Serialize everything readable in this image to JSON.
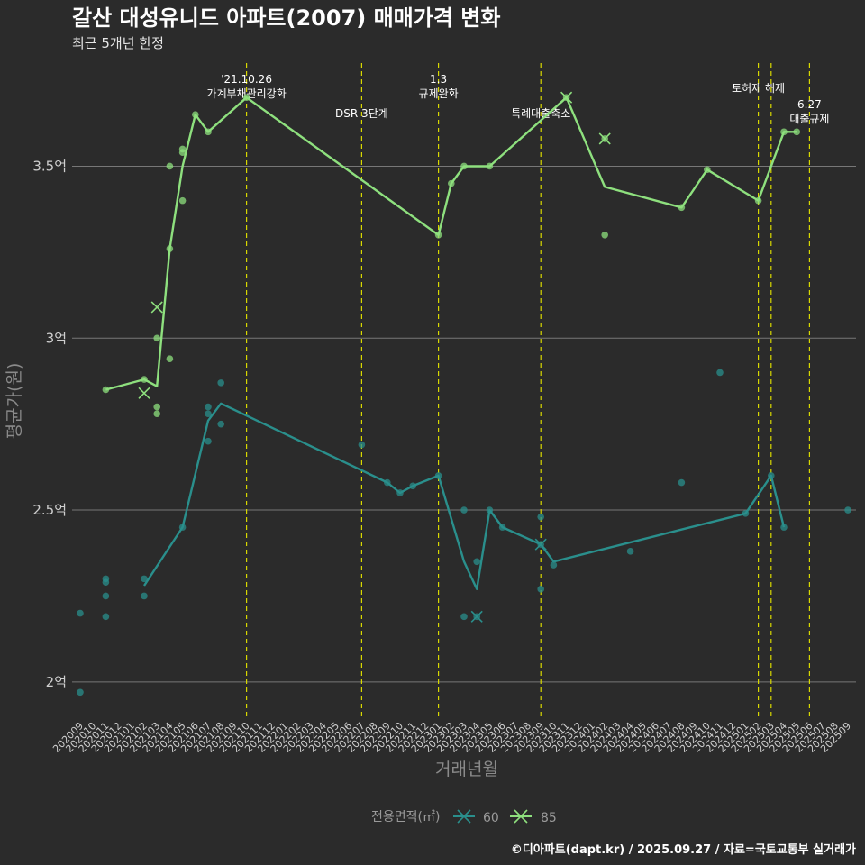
{
  "chart_data": {
    "type": "line",
    "title": "갈산 대성유니드 아파트(2007) 매매가격 변화",
    "subtitle": "최근 5개년 한정",
    "xlabel": "거래년월",
    "ylabel": "평균가(원)",
    "caption": "©디아파트(dapt.kr) / 2025.09.27 / 자료=국토교통부 실거래가",
    "categories": [
      "202009",
      "202010",
      "202011",
      "202012",
      "202101",
      "202102",
      "202103",
      "202104",
      "202105",
      "202106",
      "202107",
      "202108",
      "202109",
      "202110",
      "202111",
      "202112",
      "202201",
      "202202",
      "202203",
      "202204",
      "202205",
      "202206",
      "202207",
      "202208",
      "202209",
      "202210",
      "202211",
      "202212",
      "202301",
      "202302",
      "202303",
      "202304",
      "202305",
      "202306",
      "202307",
      "202308",
      "202309",
      "202310",
      "202311",
      "202312",
      "202401",
      "202402",
      "202403",
      "202404",
      "202405",
      "202406",
      "202407",
      "202408",
      "202409",
      "202410",
      "202411",
      "202412",
      "202501",
      "202502",
      "202503",
      "202504",
      "202505",
      "202506",
      "202507",
      "202508",
      "202509"
    ],
    "ylim": [
      1.9,
      3.8
    ],
    "yticks": [
      {
        "value": 2.0,
        "label": "2억"
      },
      {
        "value": 2.5,
        "label": "2.5억"
      },
      {
        "value": 3.0,
        "label": "3억"
      },
      {
        "value": 3.5,
        "label": "3.5억"
      }
    ],
    "legend": {
      "title": "전용면적(㎡)",
      "position": "bottom"
    },
    "series": [
      {
        "name": "60",
        "color": "#2a8f8c",
        "line": [
          [
            "202102",
            2.28
          ],
          [
            "202105",
            2.45
          ],
          [
            "202107",
            2.76
          ],
          [
            "202108",
            2.81
          ],
          [
            "202209",
            2.58
          ],
          [
            "202210",
            2.55
          ],
          [
            "202211",
            2.57
          ],
          [
            "202301",
            2.6
          ],
          [
            "202303",
            2.35
          ],
          [
            "202304",
            2.27
          ],
          [
            "202305",
            2.5
          ],
          [
            "202306",
            2.45
          ],
          [
            "202309",
            2.4
          ],
          [
            "202310",
            2.35
          ],
          [
            "202501",
            2.49
          ],
          [
            "202503",
            2.6
          ],
          [
            "202504",
            2.45
          ]
        ],
        "points": [
          [
            "202009",
            2.2
          ],
          [
            "202009",
            1.97
          ],
          [
            "202011",
            2.3
          ],
          [
            "202011",
            2.29
          ],
          [
            "202011",
            2.25
          ],
          [
            "202011",
            2.19
          ],
          [
            "202102",
            2.3
          ],
          [
            "202102",
            2.25
          ],
          [
            "202105",
            2.45
          ],
          [
            "202107",
            2.8
          ],
          [
            "202107",
            2.78
          ],
          [
            "202107",
            2.7
          ],
          [
            "202108",
            2.87
          ],
          [
            "202108",
            2.75
          ],
          [
            "202207",
            2.69
          ],
          [
            "202209",
            2.58
          ],
          [
            "202210",
            2.55
          ],
          [
            "202211",
            2.57
          ],
          [
            "202301",
            2.6
          ],
          [
            "202303",
            2.5
          ],
          [
            "202303",
            2.19
          ],
          [
            "202304",
            2.35
          ],
          [
            "202304",
            2.19
          ],
          [
            "202305",
            2.5
          ],
          [
            "202306",
            2.45
          ],
          [
            "202309",
            2.48
          ],
          [
            "202309",
            2.4
          ],
          [
            "202309",
            2.27
          ],
          [
            "202310",
            2.34
          ],
          [
            "202404",
            2.38
          ],
          [
            "202408",
            2.58
          ],
          [
            "202411",
            2.9
          ],
          [
            "202501",
            2.49
          ],
          [
            "202503",
            2.6
          ],
          [
            "202504",
            2.45
          ],
          [
            "202509",
            2.5
          ]
        ],
        "crosses": [
          [
            "202304",
            2.19
          ],
          [
            "202309",
            2.4
          ]
        ]
      },
      {
        "name": "85",
        "color": "#8ee07e",
        "line": [
          [
            "202011",
            2.85
          ],
          [
            "202102",
            2.88
          ],
          [
            "202103",
            2.86
          ],
          [
            "202104",
            3.26
          ],
          [
            "202105",
            3.5
          ],
          [
            "202106",
            3.65
          ],
          [
            "202107",
            3.6
          ],
          [
            "202110",
            3.7
          ],
          [
            "202301",
            3.3
          ],
          [
            "202302",
            3.45
          ],
          [
            "202303",
            3.5
          ],
          [
            "202305",
            3.5
          ],
          [
            "202311",
            3.7
          ],
          [
            "202402",
            3.44
          ],
          [
            "202408",
            3.38
          ],
          [
            "202410",
            3.49
          ],
          [
            "202502",
            3.4
          ],
          [
            "202504",
            3.6
          ],
          [
            "202505",
            3.6
          ]
        ],
        "points": [
          [
            "202011",
            2.85
          ],
          [
            "202102",
            2.88
          ],
          [
            "202103",
            3.0
          ],
          [
            "202103",
            2.8
          ],
          [
            "202103",
            2.78
          ],
          [
            "202104",
            3.5
          ],
          [
            "202104",
            3.26
          ],
          [
            "202104",
            2.94
          ],
          [
            "202105",
            3.55
          ],
          [
            "202105",
            3.54
          ],
          [
            "202105",
            3.4
          ],
          [
            "202106",
            3.65
          ],
          [
            "202107",
            3.6
          ],
          [
            "202110",
            3.7
          ],
          [
            "202301",
            3.3
          ],
          [
            "202302",
            3.45
          ],
          [
            "202303",
            3.5
          ],
          [
            "202305",
            3.5
          ],
          [
            "202311",
            3.7
          ],
          [
            "202402",
            3.58
          ],
          [
            "202402",
            3.3
          ],
          [
            "202408",
            3.38
          ],
          [
            "202410",
            3.49
          ],
          [
            "202502",
            3.4
          ],
          [
            "202504",
            3.6
          ],
          [
            "202505",
            3.6
          ]
        ],
        "crosses": [
          [
            "202102",
            2.84
          ],
          [
            "202103",
            3.09
          ],
          [
            "202311",
            3.7
          ],
          [
            "202402",
            3.58
          ]
        ]
      }
    ],
    "events": [
      {
        "month": "202110",
        "lines": [
          "'21.10.26",
          "가계부채관리강화"
        ]
      },
      {
        "month": "202207",
        "lines": [
          "DSR 3단계"
        ]
      },
      {
        "month": "202301",
        "lines": [
          "1.3",
          "규제완화"
        ]
      },
      {
        "month": "202309",
        "lines": [
          "특례대출축소"
        ]
      },
      {
        "month": "202502",
        "lines": [
          "토허제 해제"
        ]
      },
      {
        "month": "202503",
        "lines": []
      },
      {
        "month": "202506",
        "lines": [
          "6.27",
          "대출규제"
        ]
      }
    ]
  }
}
